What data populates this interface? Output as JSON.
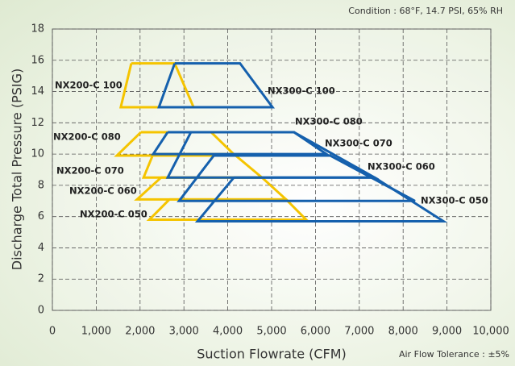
{
  "chart_data": {
    "type": "line",
    "condition": "Condition : 68°F, 14.7 PSI, 65% RH",
    "x_label": "Suction Flowrate (CFM)",
    "y_label": "Discharge Total Pressure (PSIG)",
    "tolerance": "Air Flow Tolerance : ±5%",
    "xlim": [
      0,
      10000
    ],
    "xticks": [
      0,
      {
        "value": 1000,
        "label": "1,000"
      },
      {
        "value": 2000,
        "label": "2,000"
      },
      {
        "value": 3000,
        "label": "3,000"
      },
      {
        "value": 4000,
        "label": "4,000"
      },
      {
        "value": 5000,
        "label": "5,000"
      },
      {
        "value": 6000,
        "label": "6,000"
      },
      {
        "value": 7000,
        "label": "7,000"
      },
      {
        "value": 8000,
        "label": "8,000"
      },
      {
        "value": 9000,
        "label": "9,000"
      },
      {
        "value": 10000,
        "label": "10,000"
      }
    ],
    "ylim": [
      0,
      18
    ],
    "yticks": [
      0,
      2,
      4,
      6,
      8,
      10,
      12,
      14,
      16,
      18
    ],
    "grid": true,
    "series": [
      {
        "name": "NX200-C 100",
        "color": "#f5c400",
        "x": [
          1800,
          2790,
          3220,
          1560,
          1800
        ],
        "values": [
          15.8,
          15.8,
          13.0,
          13.0,
          15.8
        ]
      },
      {
        "name": "NX200-C 080",
        "color": "#f5c400",
        "x": [
          2020,
          3620,
          4170,
          1470,
          2020
        ],
        "values": [
          11.4,
          11.4,
          9.9,
          9.9,
          11.4
        ]
      },
      {
        "name": "NX200-C 070",
        "color": "#f5c400",
        "x": [
          2300,
          4140,
          4780,
          2080,
          2300
        ],
        "values": [
          10.0,
          10.0,
          8.5,
          8.5,
          10.0
        ]
      },
      {
        "name": "NX200-C 060",
        "color": "#f5c400",
        "x": [
          2480,
          4780,
          5330,
          1930,
          2480
        ],
        "values": [
          8.5,
          8.5,
          7.1,
          7.1,
          8.5
        ]
      },
      {
        "name": "NX200-C 050",
        "color": "#f5c400",
        "x": [
          2670,
          5330,
          5790,
          2210,
          2670
        ],
        "values": [
          7.1,
          7.1,
          5.8,
          5.8,
          7.1
        ]
      },
      {
        "name": "NX300-C 100",
        "color": "#1560ad",
        "x": [
          2790,
          4280,
          5020,
          2430,
          2790
        ],
        "values": [
          15.8,
          15.8,
          13.0,
          13.0,
          15.8
        ]
      },
      {
        "name": "NX300-C 080",
        "color": "#1560ad",
        "x": [
          2630,
          5510,
          6250,
          2300,
          2630
        ],
        "values": [
          11.4,
          11.4,
          10.0,
          10.0,
          11.4
        ]
      },
      {
        "name": "NX300-C 070",
        "color": "#1560ad",
        "x": [
          3160,
          5510,
          7350,
          2630,
          3160
        ],
        "values": [
          11.4,
          11.4,
          8.5,
          8.5,
          11.4
        ]
      },
      {
        "name": "NX300-C 060",
        "color": "#1560ad",
        "x": [
          3680,
          6340,
          8270,
          2890,
          3680
        ],
        "values": [
          9.9,
          9.9,
          7.0,
          7.0,
          9.9
        ]
      },
      {
        "name": "NX300-C 050",
        "color": "#1560ad",
        "x": [
          4140,
          7350,
          8920,
          3310,
          4140
        ],
        "values": [
          8.5,
          8.5,
          5.7,
          5.7,
          8.5
        ]
      }
    ]
  }
}
